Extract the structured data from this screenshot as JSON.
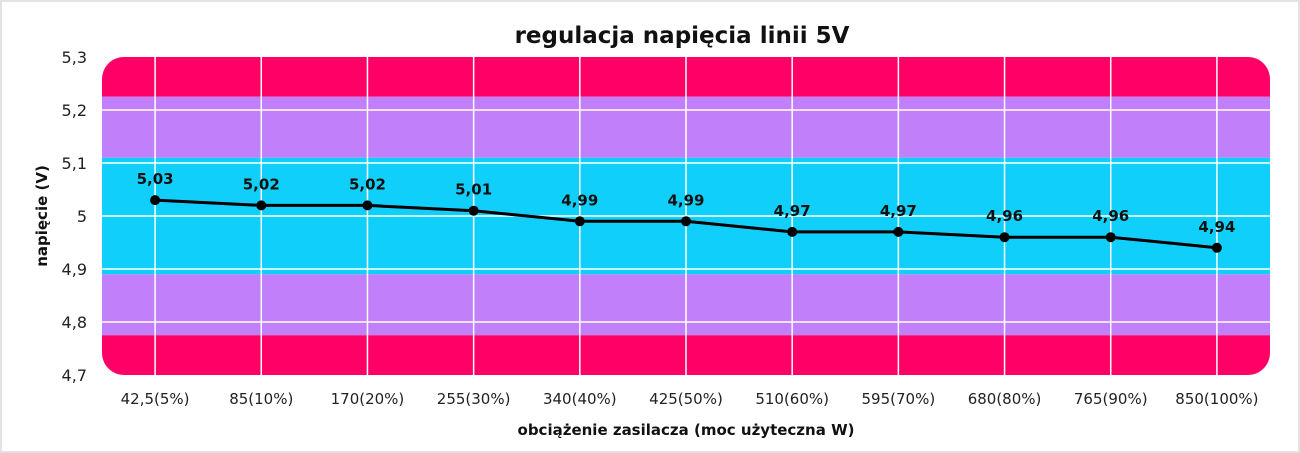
{
  "chart_data": {
    "type": "line",
    "title": "regulacja napięcia linii 5V",
    "xlabel": "obciążenie zasilacza (moc użyteczna W)",
    "ylabel": "napięcie (V)",
    "categories": [
      "42,5(5%)",
      "85(10%)",
      "170(20%)",
      "255(30%)",
      "340(40%)",
      "425(50%)",
      "510(60%)",
      "595(70%)",
      "680(80%)",
      "765(90%)",
      "850(100%)"
    ],
    "values": [
      5.03,
      5.02,
      5.02,
      5.01,
      4.99,
      4.99,
      4.97,
      4.97,
      4.96,
      4.96,
      4.94
    ],
    "data_labels": [
      "5,03",
      "5,02",
      "5,02",
      "5,01",
      "4,99",
      "4,99",
      "4,97",
      "4,97",
      "4,96",
      "4,96",
      "4,94"
    ],
    "ylim": [
      4.7,
      5.3
    ],
    "yticks": [
      5.3,
      5.2,
      5.1,
      5.0,
      4.9,
      4.8,
      4.7
    ],
    "ytick_labels": [
      "5,3",
      "5,2",
      "5,1",
      "5",
      "4,9",
      "4,8",
      "4,7"
    ],
    "grid": true,
    "bands": [
      {
        "from": 5.225,
        "to": 5.3,
        "color": "#ff0066"
      },
      {
        "from": 5.11,
        "to": 5.225,
        "color": "#c17ffa"
      },
      {
        "from": 4.89,
        "to": 5.11,
        "color": "#10d0fb"
      },
      {
        "from": 4.775,
        "to": 4.89,
        "color": "#c17ffa"
      },
      {
        "from": 4.7,
        "to": 4.775,
        "color": "#ff0066"
      }
    ],
    "line_color": "#000000"
  }
}
